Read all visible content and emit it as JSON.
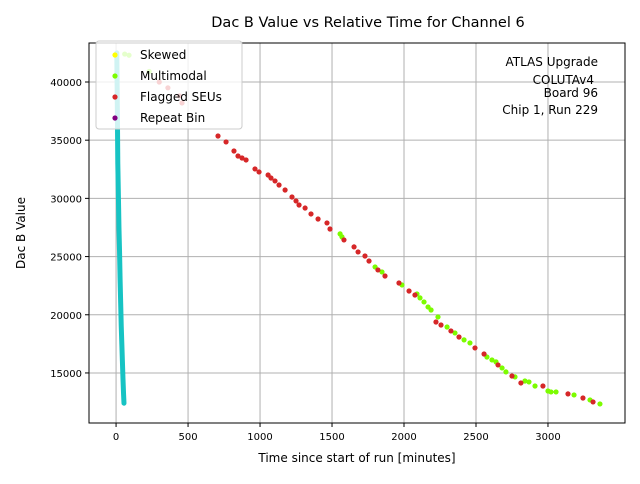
{
  "chart_data": {
    "type": "scatter",
    "title": "Dac B Value vs Relative Time for Channel 6",
    "xlabel": "Time since start of run [minutes]",
    "ylabel": "Dac B Value",
    "xlim": [
      -188,
      3535
    ],
    "ylim": [
      10700,
      43350
    ],
    "grid": true,
    "x_ticks": [
      0,
      500,
      1000,
      1500,
      2000,
      2500,
      3000
    ],
    "y_ticks": [
      15000,
      20000,
      25000,
      30000,
      35000,
      40000
    ],
    "legend_position": "top-left",
    "annotation": [
      "ATLAS Upgrade",
      "COLUTAv4",
      "Board 96",
      "Chip 1, Run 229"
    ],
    "colors": {
      "trace": "#17c3c3",
      "skewed": "#ffff00",
      "multimodal": "#7cfc00",
      "flagged": "#d62728",
      "repeat": "#800080"
    },
    "trace": {
      "name": "Dac B",
      "x": [
        5,
        8,
        10,
        12,
        15,
        18,
        20,
        24,
        28,
        32,
        36,
        40,
        44,
        48,
        52,
        55
      ],
      "y": [
        42500,
        39000,
        36000,
        33000,
        31000,
        29000,
        27500,
        25500,
        23000,
        21000,
        19000,
        17500,
        16000,
        14500,
        13200,
        12400
      ]
    },
    "series": [
      {
        "name": "Skewed",
        "color_key": "skewed",
        "x": [],
        "y": []
      },
      {
        "name": "Multimodal",
        "color_key": "multimodal",
        "x": [
          60,
          90,
          230,
          1556,
          1569,
          1799,
          1847,
          1986,
          2090,
          2111,
          2139,
          2167,
          2188,
          2236,
          2299,
          2354,
          2417,
          2458,
          2576,
          2611,
          2639,
          2681,
          2708,
          2771,
          2840,
          2868,
          2910,
          3000,
          3021,
          3056,
          3181,
          3292,
          3361
        ],
        "y": [
          42400,
          42300,
          40900,
          26950,
          26690,
          24110,
          23680,
          22560,
          21790,
          21450,
          21100,
          20670,
          20410,
          19810,
          18950,
          18440,
          17840,
          17580,
          16370,
          16120,
          15950,
          15430,
          15090,
          14660,
          14310,
          14230,
          13880,
          13450,
          13370,
          13370,
          13110,
          12680,
          12340
        ]
      },
      {
        "name": "Flagged SEUs",
        "color_key": "flagged",
        "x": [
          300,
          360,
          440,
          458,
          708,
          764,
          819,
          847,
          875,
          903,
          965,
          993,
          1056,
          1076,
          1104,
          1132,
          1174,
          1222,
          1250,
          1271,
          1313,
          1354,
          1403,
          1465,
          1486,
          1583,
          1653,
          1681,
          1729,
          1757,
          1819,
          1868,
          1965,
          2035,
          2076,
          2222,
          2257,
          2326,
          2382,
          2493,
          2556,
          2653,
          2750,
          2812,
          2965,
          3139,
          3243,
          3313
        ],
        "y": [
          40000,
          39500,
          38800,
          38200,
          35360,
          34850,
          34070,
          33640,
          33470,
          33300,
          32530,
          32270,
          32010,
          31750,
          31500,
          31150,
          30720,
          30120,
          29780,
          29430,
          29170,
          28660,
          28230,
          27890,
          27370,
          26430,
          25830,
          25400,
          25050,
          24620,
          23850,
          23330,
          22730,
          22040,
          21700,
          19380,
          19120,
          18610,
          18090,
          17150,
          16630,
          15690,
          14740,
          14140,
          13880,
          13200,
          12850,
          12510
        ]
      },
      {
        "name": "Repeat Bin",
        "color_key": "repeat",
        "x": [],
        "y": []
      }
    ]
  }
}
